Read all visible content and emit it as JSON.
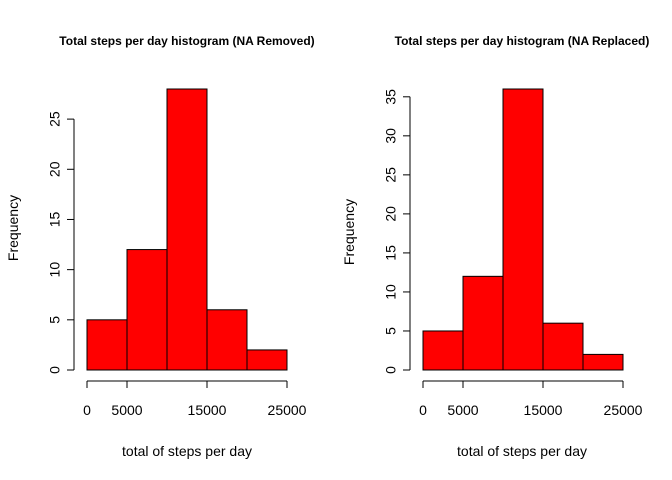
{
  "chart_data": [
    {
      "type": "bar",
      "title": "Total steps per day histogram (NA Removed)",
      "xlabel": "total of steps per day",
      "ylabel": "Frequency",
      "bins": [
        [
          0,
          5000
        ],
        [
          5000,
          10000
        ],
        [
          10000,
          15000
        ],
        [
          15000,
          20000
        ],
        [
          20000,
          25000
        ]
      ],
      "values": [
        5,
        12,
        28,
        6,
        2
      ],
      "xticks": [
        0,
        5000,
        15000,
        25000
      ],
      "yticks": [
        0,
        5,
        10,
        15,
        20,
        25
      ],
      "xlim": [
        0,
        25000
      ],
      "ylim": [
        0,
        28
      ],
      "bar_color": "#ff0000",
      "grid": false
    },
    {
      "type": "bar",
      "title": "Total steps per day histogram (NA Replaced)",
      "xlabel": "total of steps per day",
      "ylabel": "Frequency",
      "bins": [
        [
          0,
          5000
        ],
        [
          5000,
          10000
        ],
        [
          10000,
          15000
        ],
        [
          15000,
          20000
        ],
        [
          20000,
          25000
        ]
      ],
      "values": [
        5,
        12,
        36,
        6,
        2
      ],
      "xticks": [
        0,
        5000,
        15000,
        25000
      ],
      "yticks": [
        0,
        5,
        10,
        15,
        20,
        25,
        30,
        35
      ],
      "xlim": [
        0,
        25000
      ],
      "ylim": [
        0,
        36
      ],
      "bar_color": "#ff0000",
      "grid": false
    }
  ]
}
